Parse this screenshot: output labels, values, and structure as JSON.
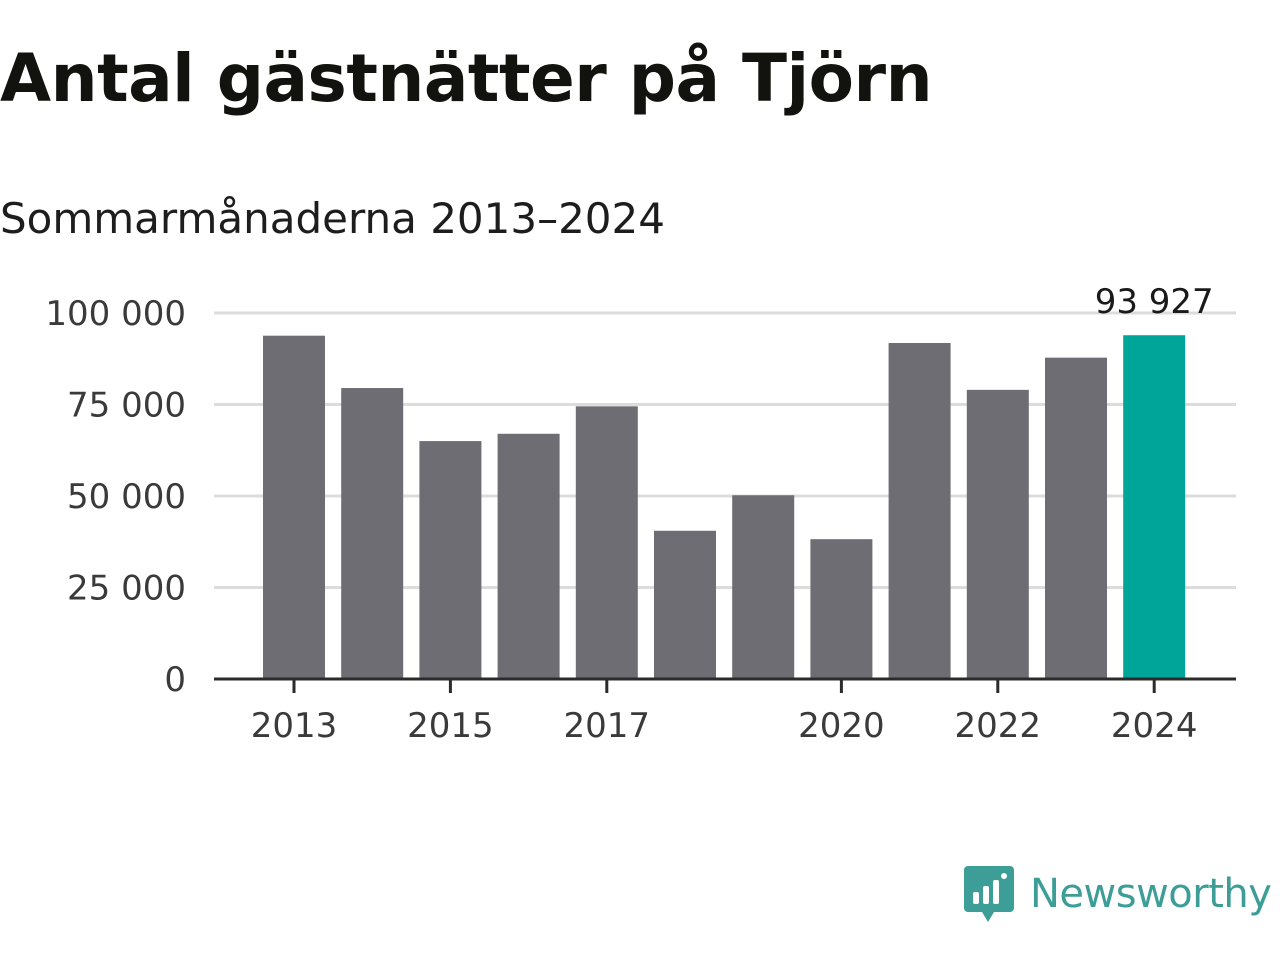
{
  "title": "Antal gästnätter på Tjörn",
  "subtitle": "Sommarmånaderna 2013–2024",
  "chart_data": {
    "type": "bar",
    "categories": [
      "2013",
      "2014",
      "2015",
      "2016",
      "2017",
      "2018",
      "2019",
      "2020",
      "2021",
      "2022",
      "2023",
      "2024"
    ],
    "values": [
      93800,
      79500,
      65000,
      67000,
      74500,
      40500,
      50200,
      38200,
      91800,
      79000,
      87800,
      93927
    ],
    "x_tick_labels": [
      "2013",
      "2015",
      "2017",
      "2020",
      "2022",
      "2024"
    ],
    "y_ticks": [
      0,
      25000,
      50000,
      75000,
      100000
    ],
    "y_tick_labels": [
      "0",
      "25 000",
      "50 000",
      "75 000",
      "100 000"
    ],
    "ylim": [
      0,
      100000
    ],
    "highlight_category": "2024",
    "highlight_label": "93 927",
    "grid": true,
    "colors": {
      "bar": "#6e6d73",
      "highlight": "#00a59a",
      "grid": "#dcdcdc",
      "axis": "#2b2b2b"
    }
  },
  "branding": {
    "name": "Newsworthy",
    "icon": "newsworthy-chart-icon",
    "color": "#3d9e98"
  }
}
